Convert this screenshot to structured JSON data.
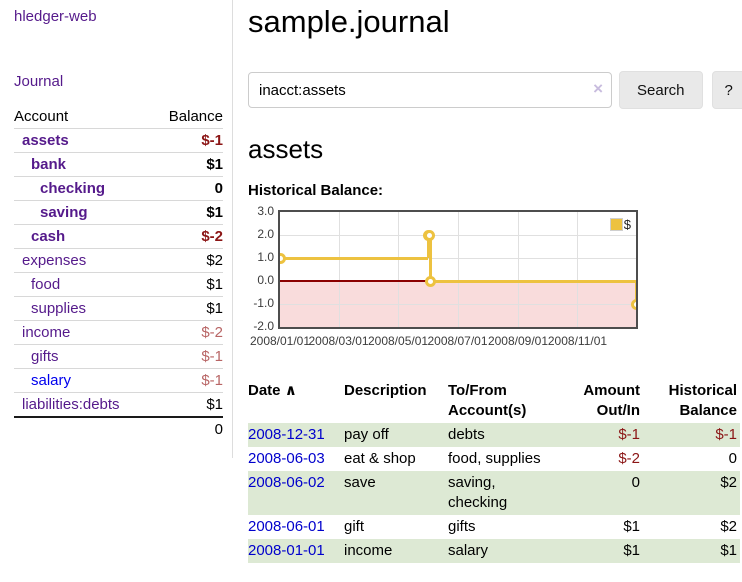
{
  "sidebar": {
    "app_title": "hledger-web",
    "journal_link": "Journal",
    "accounts": {
      "col_account": "Account",
      "col_balance": "Balance",
      "rows": [
        {
          "name": "assets",
          "balance": "$-1"
        },
        {
          "name": "bank",
          "balance": "$1"
        },
        {
          "name": "checking",
          "balance": "0"
        },
        {
          "name": "saving",
          "balance": "$1"
        },
        {
          "name": "cash",
          "balance": "$-2"
        },
        {
          "name": "expenses",
          "balance": "$2"
        },
        {
          "name": "food",
          "balance": "$1"
        },
        {
          "name": "supplies",
          "balance": "$1"
        },
        {
          "name": "income",
          "balance": "$-2"
        },
        {
          "name": "gifts",
          "balance": "$-1"
        },
        {
          "name": "salary",
          "balance": "$-1"
        },
        {
          "name": "liabilities:debts",
          "balance": "$1"
        }
      ],
      "total": "0"
    }
  },
  "main": {
    "title": "sample.journal",
    "search": {
      "value": "inacct:assets",
      "clear_icon": "×",
      "search_button": "Search",
      "help_button": "?"
    },
    "account_title": "assets",
    "chart_label": "Historical Balance:"
  },
  "chart_data": {
    "type": "line",
    "style": "step",
    "title": "Historical Balance of assets",
    "series": [
      {
        "name": "$",
        "color": "#edc240",
        "points": [
          {
            "x": "2008-01-01",
            "y": 1.0
          },
          {
            "x": "2008-06-01",
            "y": 2.0
          },
          {
            "x": "2008-06-02",
            "y": 2.0
          },
          {
            "x": "2008-06-03",
            "y": 0.0
          },
          {
            "x": "2008-12-31",
            "y": -1.0
          }
        ]
      }
    ],
    "ylim": [
      -2.0,
      3.0
    ],
    "ytick_labels": [
      "3.0",
      "2.0",
      "1.0",
      "0.0",
      "-1.0",
      "-2.0"
    ],
    "yticks": [
      3.0,
      2.0,
      1.0,
      0.0,
      -1.0,
      -2.0
    ],
    "xtick_labels": [
      "2008/01/01",
      "2008/03/01",
      "2008/05/01",
      "2008/07/01",
      "2008/09/01",
      "2008/11/01"
    ],
    "grid": true,
    "legend_position": "top-right",
    "legend_label": "$",
    "negative_region_color": "#f9dcdc",
    "zero_line_color": "#8b0000",
    "grid_color": "#e0e0e0"
  },
  "register": {
    "headers": {
      "date": "Date",
      "sort_icon": "∧",
      "description": "Description",
      "accounts": "To/From Account(s)",
      "amount": "Amount Out/In",
      "balance": "Historical Balance"
    },
    "rows": [
      {
        "date": "2008-12-31",
        "description": "pay off",
        "accounts": "debts",
        "amount": "$-1",
        "balance": "$-1"
      },
      {
        "date": "2008-06-03",
        "description": "eat & shop",
        "accounts": "food, supplies",
        "amount": "$-2",
        "balance": "0"
      },
      {
        "date": "2008-06-02",
        "description": "save",
        "accounts": "saving, checking",
        "amount": "0",
        "balance": "$2"
      },
      {
        "date": "2008-06-01",
        "description": "gift",
        "accounts": "gifts",
        "amount": "$1",
        "balance": "$2"
      },
      {
        "date": "2008-01-01",
        "description": "income",
        "accounts": "salary",
        "amount": "$1",
        "balance": "$1"
      }
    ]
  },
  "colors": {
    "link_purple": "#551a8b",
    "link_blue": "#0000ee",
    "date_link_blue": "#0000cc",
    "negative_strong": "#8b1515",
    "negative_soft": "#b86565",
    "row_stripe_green": "#dde9d4",
    "series_gold": "#edc240",
    "button_gray": "#e9e9e9"
  }
}
